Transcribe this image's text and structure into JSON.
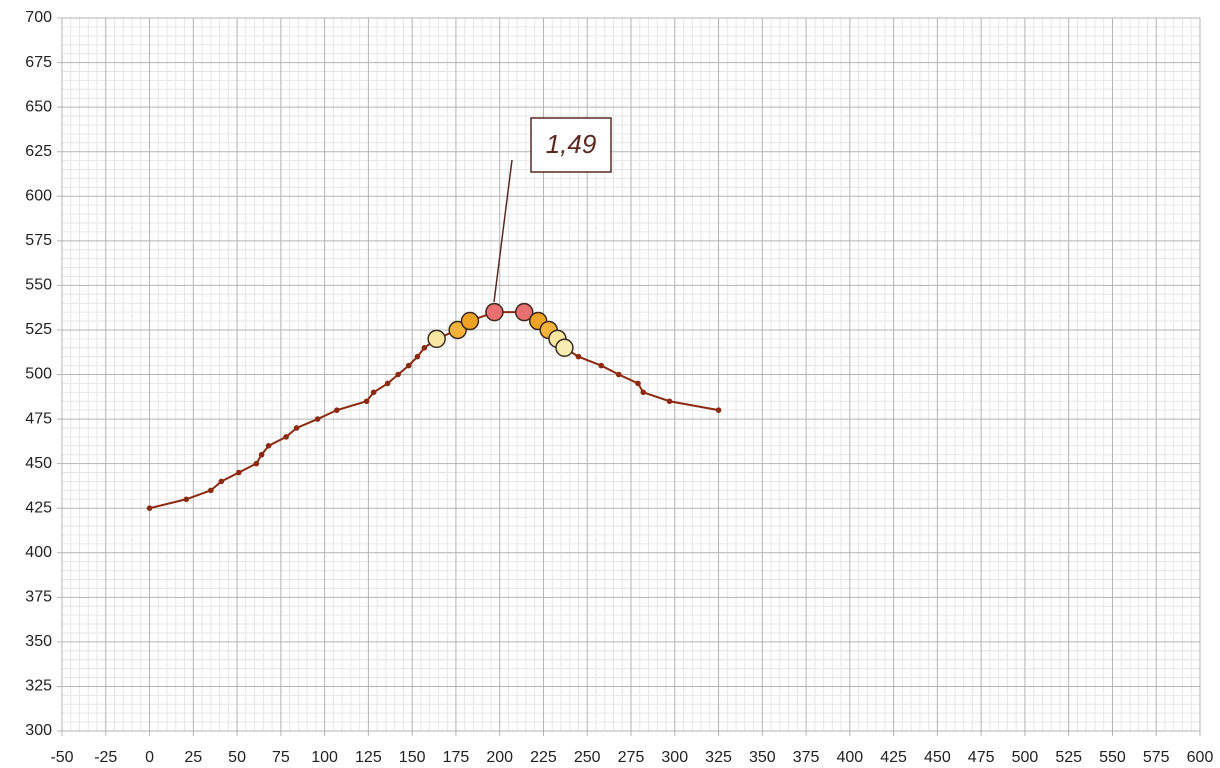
{
  "chart_data": {
    "type": "line",
    "x": [
      0,
      21,
      35,
      41,
      51,
      61,
      64,
      68,
      78,
      84,
      96,
      107,
      124,
      128,
      136,
      142,
      148,
      153,
      157,
      164,
      176,
      183,
      197,
      214,
      222,
      228,
      233,
      237,
      245,
      258,
      268,
      279,
      282,
      297,
      325
    ],
    "series": [
      {
        "color": "#8b2a10",
        "values": [
          425,
          430,
          435,
          440,
          445,
          450,
          455,
          460,
          465,
          470,
          475,
          480,
          485,
          490,
          495,
          500,
          505,
          510,
          515,
          520,
          525,
          530,
          535,
          535,
          530,
          525,
          520,
          515,
          510,
          505,
          500,
          495,
          490,
          485,
          480
        ],
        "marker_colors": [
          null,
          null,
          null,
          null,
          null,
          null,
          null,
          null,
          null,
          null,
          null,
          null,
          null,
          null,
          null,
          null,
          null,
          null,
          null,
          "#f7e7a0",
          "#f5b33a",
          "#f0a225",
          "#ea6f70",
          "#ea6f70",
          "#f0a225",
          "#f5b33a",
          "#f7e7a0",
          "#f8ecb5",
          null,
          null,
          null,
          null,
          null,
          null,
          null
        ]
      }
    ],
    "annotations": [
      "1,49"
    ],
    "xlim": [
      -50,
      600
    ],
    "xticks": [
      -50,
      -25,
      0,
      25,
      50,
      75,
      100,
      125,
      150,
      175,
      200,
      225,
      250,
      275,
      300,
      325,
      350,
      375,
      400,
      425,
      450,
      475,
      500,
      525,
      550,
      575,
      600
    ],
    "ylim": [
      300,
      700
    ],
    "yticks": [
      300,
      325,
      350,
      375,
      400,
      425,
      450,
      475,
      500,
      525,
      550,
      575,
      600,
      625,
      650,
      675,
      700
    ],
    "grid": true,
    "minor_grid": true
  }
}
